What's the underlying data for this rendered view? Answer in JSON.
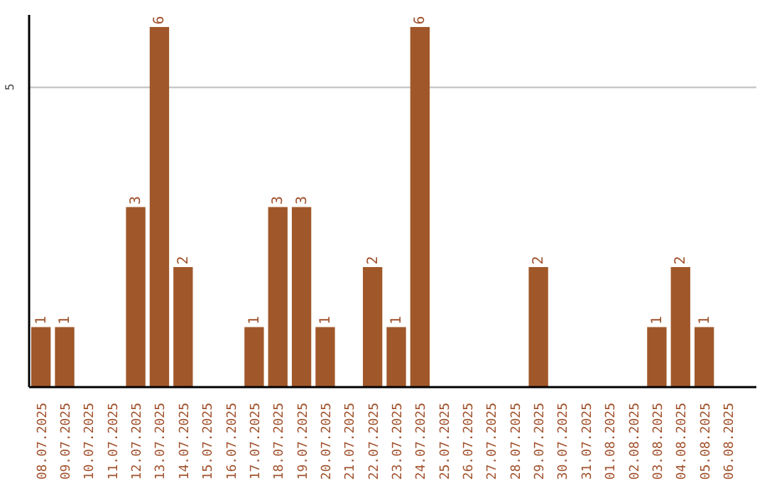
{
  "chart_data": {
    "type": "bar",
    "categories": [
      "08.07.2025",
      "09.07.2025",
      "10.07.2025",
      "11.07.2025",
      "12.07.2025",
      "13.07.2025",
      "14.07.2025",
      "15.07.2025",
      "16.07.2025",
      "17.07.2025",
      "18.07.2025",
      "19.07.2025",
      "20.07.2025",
      "21.07.2025",
      "22.07.2025",
      "23.07.2025",
      "24.07.2025",
      "25.07.2025",
      "26.07.2025",
      "27.07.2025",
      "28.07.2025",
      "29.07.2025",
      "30.07.2025",
      "31.07.2025",
      "01.08.2025",
      "02.08.2025",
      "03.08.2025",
      "04.08.2025",
      "05.08.2025",
      "06.08.2025"
    ],
    "values": [
      1,
      1,
      0,
      0,
      3,
      6,
      2,
      0,
      0,
      1,
      3,
      3,
      1,
      0,
      2,
      1,
      6,
      0,
      0,
      0,
      0,
      2,
      0,
      0,
      0,
      0,
      1,
      2,
      1,
      0
    ],
    "value_labels": [
      "1",
      "1",
      null,
      null,
      "3",
      "6",
      "2",
      null,
      null,
      "1",
      "3",
      "3",
      "1",
      null,
      "2",
      "1",
      "6",
      null,
      null,
      null,
      null,
      "2",
      null,
      null,
      null,
      null,
      "1",
      "2",
      "1",
      null
    ],
    "color": "#a0582a",
    "ylim": [
      0,
      6.2
    ],
    "yticks": [
      5
    ],
    "grid": "y"
  }
}
